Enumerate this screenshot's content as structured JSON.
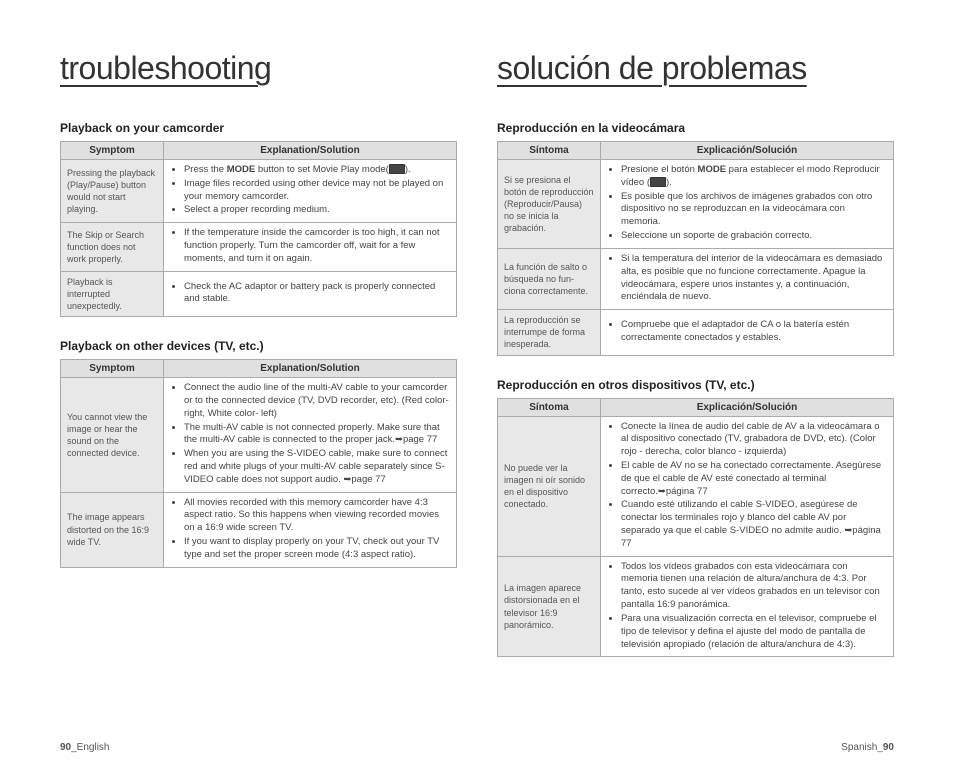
{
  "left": {
    "title": "troubleshooting",
    "sec1_title": "Playback on your camcorder",
    "t1": {
      "h1": "Symptom",
      "h2": "Explanation/Solution",
      "rows": [
        {
          "symptom": "Pressing the playback (Play/Pause) button would not start playing.",
          "sol": [
            "Press the <b>MODE</b> button to set Movie Play mode(<span class='mode-icon'></span>).",
            "Image files recorded using other device may not be played on your memory camcorder.",
            "Select a proper recording medium."
          ]
        },
        {
          "symptom": "The Skip or Search function does not work properly.",
          "sol": [
            "If the temperature inside the camcorder is too high, it can not function properly. Turn the camcorder off, wait for a few moments, and turn it on again."
          ]
        },
        {
          "symptom": "Playback is interrupted unexpectedly.",
          "sol": [
            "Check the AC adaptor or battery pack is properly connected and stable."
          ]
        }
      ]
    },
    "sec2_title": "Playback on other devices (TV, etc.)",
    "t2": {
      "h1": "Symptom",
      "h2": "Explanation/Solution",
      "rows": [
        {
          "symptom": "You cannot view the image or hear the sound on the connected device.",
          "sol": [
            "Connect the audio line of the multi-AV cable to your camcorder or to the connected device (TV, DVD recorder, etc).   (Red color- right, White color- left)",
            "The multi-AV cable is not connected properly. Make sure that the multi-AV cable is connected to the proper jack.➥page 77",
            "When you are using the S-VIDEO cable, make sure to connect red and white plugs of your multi-AV cable separately since S-VIDEO cable does not support audio. ➥page 77"
          ]
        },
        {
          "symptom": "The image appears distorted on the 16:9 wide TV.",
          "sol": [
            "All movies recorded with this memory camcorder have 4:3 aspect ratio. So this happens when viewing recorded movies on a 16:9 wide screen TV.",
            "If you want to display properly on your TV, check out your TV type and set the proper screen mode (4:3 aspect ratio)."
          ]
        }
      ]
    },
    "footer_pg": "90",
    "footer_lang": "_English"
  },
  "right": {
    "title": "solución de problemas",
    "sec1_title": "Reproducción en la videocámara",
    "t1": {
      "h1": "Síntoma",
      "h2": "Explicación/Solución",
      "rows": [
        {
          "symptom": "Si se presiona el botón de reproducción (Reproducir/Pausa) no se inicia la grabación.",
          "sol": [
            "Presione el botón <b>MODE</b> para establecer el modo Reproducir vídeo (<span class='mode-icon'></span>).",
            "Es posible que los archivos de imágenes grabados con otro dispositivo no se reproduzcan en la videocámara con memoria.",
            "Seleccione un soporte de grabación correcto."
          ]
        },
        {
          "symptom": "La función de salto o búsqueda no fun-ciona correctamente.",
          "sol": [
            "Si la temperatura del interior de la videocámara es demasiado alta, es posible que no funcione correctamente. Apague la videocámara, espere unos instantes y, a continuación, enciéndala de nuevo."
          ]
        },
        {
          "symptom": "La reproducción se interrumpe de forma inesperada.",
          "sol": [
            "Compruebe que el adaptador de CA o la batería estén correctamente conectados y estables."
          ]
        }
      ]
    },
    "sec2_title": "Reproducción en otros dispositivos (TV, etc.)",
    "t2": {
      "h1": "Síntoma",
      "h2": "Explicación/Solución",
      "rows": [
        {
          "symptom": "No puede ver la imagen ni oír sonido en el dispositivo conectado.",
          "sol": [
            "Conecte la línea de audio del cable de AV a la videocámara o al dispositivo conectado (TV, grabadora de DVD, etc). (Color rojo - derecha, color blanco - izquierda)",
            "El cable de AV no se ha conectado correctamente. Asegúrese de que el cable de AV esté conectado al terminal correcto.➥página 77",
            "Cuando esté utilizando el cable S-VIDEO, asegúrese de conectar los terminales rojo y blanco del cable AV por separado ya que el cable S-VIDEO no admite audio. ➥página 77"
          ]
        },
        {
          "symptom": "La imagen aparece distorsionada en el televisor 16:9 panorámico.",
          "sol": [
            "Todos los vídeos grabados con esta videocámara con memoria tienen una relación de altura/anchura de 4:3. Por tanto, esto sucede al ver vídeos grabados en un televisor con pantalla 16:9 panorámica.",
            "Para una visualización correcta en el televisor, compruebe el tipo de televisor y defina el ajuste del modo de pantalla de televisión apropiado (relación de altura/anchura de 4:3)."
          ]
        }
      ]
    },
    "footer_lang": "Spanish_",
    "footer_pg": "90"
  }
}
